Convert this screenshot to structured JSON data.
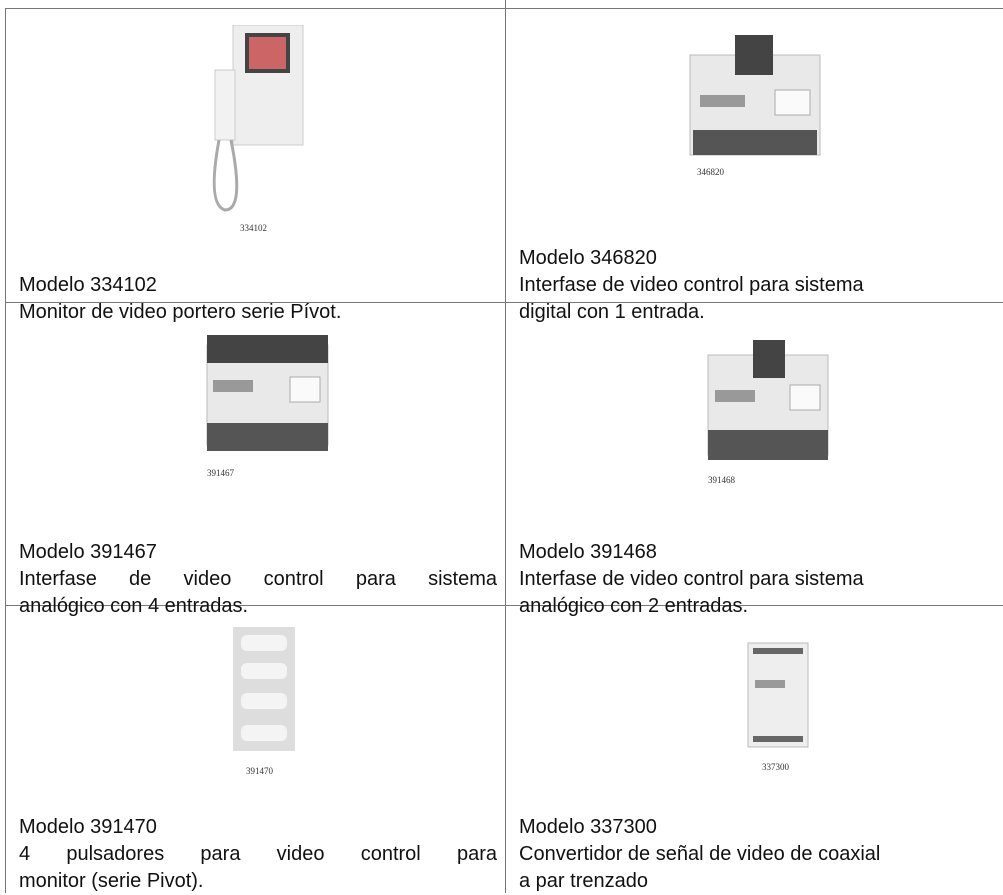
{
  "table": {
    "rows": [
      [
        {
          "code": "334102",
          "model": "Modelo 334102",
          "lines": [
            "Monitor de video portero serie Pívot."
          ]
        },
        {
          "code": "346820",
          "model": "Modelo 346820",
          "lines": [
            "Interfase de video control para sistema",
            "digital con 1 entrada."
          ]
        }
      ],
      [
        {
          "code": "391467",
          "model": "Modelo 391467",
          "lines": [
            " Interfase de video control para sistema",
            "analógico con 4 entradas."
          ],
          "justify": true
        },
        {
          "code": "391468",
          "model": "Modelo 391468",
          "lines": [
            "Interfase de video control para sistema",
            "analógico con 2 entradas."
          ]
        }
      ],
      [
        {
          "code": "391470",
          "model": "Modelo 391470",
          "lines": [
            "4 pulsadores para video control para",
            "monitor (serie Pivot)."
          ],
          "justify": true
        },
        {
          "code": "337300",
          "model": "Modelo 337300",
          "lines": [
            "Convertidor de señal de video de coaxial",
            "a par trenzado"
          ]
        }
      ]
    ]
  }
}
